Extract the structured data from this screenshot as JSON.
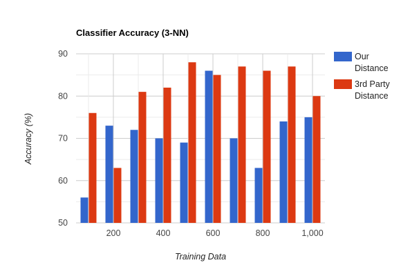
{
  "chart_data": {
    "type": "bar",
    "title": "Classifier Accuracy (3-NN)",
    "xlabel": "Training Data",
    "ylabel": "Accuracy (%)",
    "x": [
      100,
      200,
      300,
      400,
      500,
      600,
      700,
      800,
      900,
      1000
    ],
    "xticks": [
      "200",
      "400",
      "600",
      "800",
      "1,000"
    ],
    "xtick_values": [
      200,
      400,
      600,
      800,
      1000
    ],
    "xlim": [
      50,
      1050
    ],
    "ylim": [
      50,
      90
    ],
    "yticks": [
      50,
      60,
      70,
      80,
      90
    ],
    "grid": true,
    "legend": "right",
    "series": [
      {
        "name": "Our Distance",
        "color": "#3366cc",
        "values": [
          56,
          73,
          72,
          70,
          69,
          86,
          70,
          63,
          74,
          75
        ]
      },
      {
        "name": "3rd Party Distance",
        "color": "#dc3912",
        "values": [
          76,
          63,
          81,
          82,
          88,
          85,
          87,
          86,
          87,
          80
        ]
      }
    ],
    "legend_lines": [
      [
        "Our",
        "Distance"
      ],
      [
        "3rd Party",
        "Distance"
      ]
    ]
  }
}
